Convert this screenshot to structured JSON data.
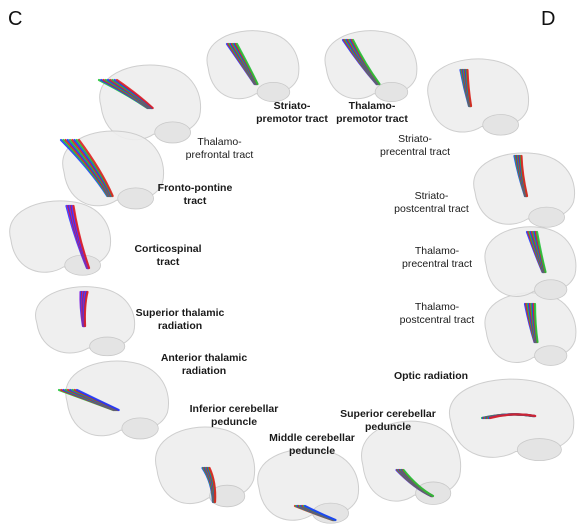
{
  "panels": [
    {
      "letter": "C"
    },
    {
      "letter": "D"
    }
  ],
  "tracts": [
    {
      "id": "striato-premotor",
      "label": "Striato-\npremotor tract",
      "bold": true,
      "fiber_colors": [
        "#1b3cff",
        "#e02020",
        "#23c23a"
      ]
    },
    {
      "id": "thalamo-premotor",
      "label": "Thalamo-\npremotor tract",
      "bold": true,
      "fiber_colors": [
        "#1b3cff",
        "#e02020",
        "#23c23a"
      ]
    },
    {
      "id": "thalamo-prefrontal",
      "label": "Thalamo-\nprefrontal tract",
      "bold": false,
      "fiber_colors": [
        "#23c23a",
        "#1b3cff",
        "#e02020"
      ]
    },
    {
      "id": "fronto-pontine",
      "label": "Fronto-pontine\ntract",
      "bold": true,
      "fiber_colors": [
        "#1b3cff",
        "#23c23a",
        "#e02020"
      ]
    },
    {
      "id": "corticospinal",
      "label": "Corticospinal\ntract",
      "bold": true,
      "fiber_colors": [
        "#1b3cff",
        "#7a2cff",
        "#e02020"
      ]
    },
    {
      "id": "superior-thalamic",
      "label": "Superior thalamic\nradiation",
      "bold": true,
      "fiber_colors": [
        "#8a2be2",
        "#1b3cff",
        "#e02020"
      ]
    },
    {
      "id": "anterior-thalamic",
      "label": "Anterior thalamic\nradiation",
      "bold": true,
      "fiber_colors": [
        "#23c23a",
        "#e02020",
        "#1b3cff"
      ]
    },
    {
      "id": "inferior-cerebellar",
      "label": "Inferior cerebellar\npeduncle",
      "bold": true,
      "fiber_colors": [
        "#1b3cff",
        "#23c23a",
        "#e02020"
      ]
    },
    {
      "id": "middle-cerebellar",
      "label": "Middle cerebellar\npeduncle",
      "bold": true,
      "fiber_colors": [
        "#e02020",
        "#23c23a",
        "#1b3cff"
      ]
    },
    {
      "id": "superior-cerebellar",
      "label": "Superior cerebellar\npeduncle",
      "bold": true,
      "fiber_colors": [
        "#1b3cff",
        "#e02020",
        "#23c23a"
      ]
    },
    {
      "id": "optic-radiation",
      "label": "Optic radiation",
      "bold": true,
      "fiber_colors": [
        "#23c23a",
        "#1b3cff",
        "#e02020"
      ]
    },
    {
      "id": "thalamo-postcentral",
      "label": "Thalamo-\npostcentral tract",
      "bold": false,
      "fiber_colors": [
        "#1b3cff",
        "#e02020",
        "#23c23a"
      ]
    },
    {
      "id": "thalamo-precentral",
      "label": "Thalamo-\nprecentral tract",
      "bold": false,
      "fiber_colors": [
        "#1b3cff",
        "#e02020",
        "#23c23a"
      ]
    },
    {
      "id": "striato-postcentral",
      "label": "Striato-\npostcentral tract",
      "bold": false,
      "fiber_colors": [
        "#1b3cff",
        "#23c23a",
        "#e02020"
      ]
    },
    {
      "id": "striato-precentral",
      "label": "Striato-\nprecentral tract",
      "bold": false,
      "fiber_colors": [
        "#1b3cff",
        "#23c23a",
        "#e02020"
      ]
    }
  ]
}
